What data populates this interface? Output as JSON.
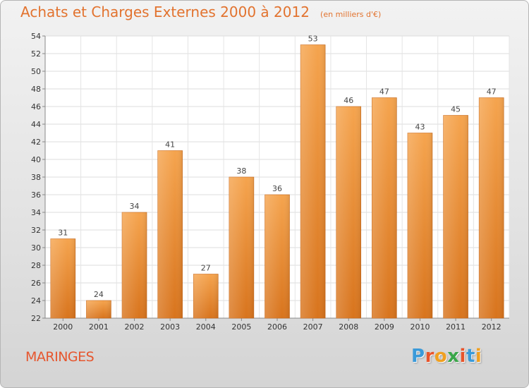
{
  "header": {
    "title": "Achats et Charges Externes 2000 à 2012",
    "unit_note": "(en milliers d'€)"
  },
  "footer": {
    "commune": "MARINGES",
    "logo_text": "Proxiti",
    "logo_colors": [
      "#3a9ad9",
      "#e8542b",
      "#f0a020",
      "#3aa64a",
      "#e8542b",
      "#3a9ad9",
      "#f0a020"
    ]
  },
  "chart_data": {
    "type": "bar",
    "categories": [
      "2000",
      "2001",
      "2002",
      "2003",
      "2004",
      "2005",
      "2006",
      "2007",
      "2008",
      "2009",
      "2010",
      "2011",
      "2012"
    ],
    "values": [
      31,
      24,
      34,
      41,
      27,
      38,
      36,
      53,
      46,
      47,
      43,
      45,
      47
    ],
    "ylim": [
      22,
      54
    ],
    "yticks": [
      22,
      24,
      26,
      28,
      30,
      32,
      34,
      36,
      38,
      40,
      42,
      44,
      46,
      48,
      50,
      52,
      54
    ],
    "grid": true,
    "bar_color_top": "#f5a44e",
    "bar_color_bottom": "#d8741d",
    "plot_background": "#ffffff"
  }
}
